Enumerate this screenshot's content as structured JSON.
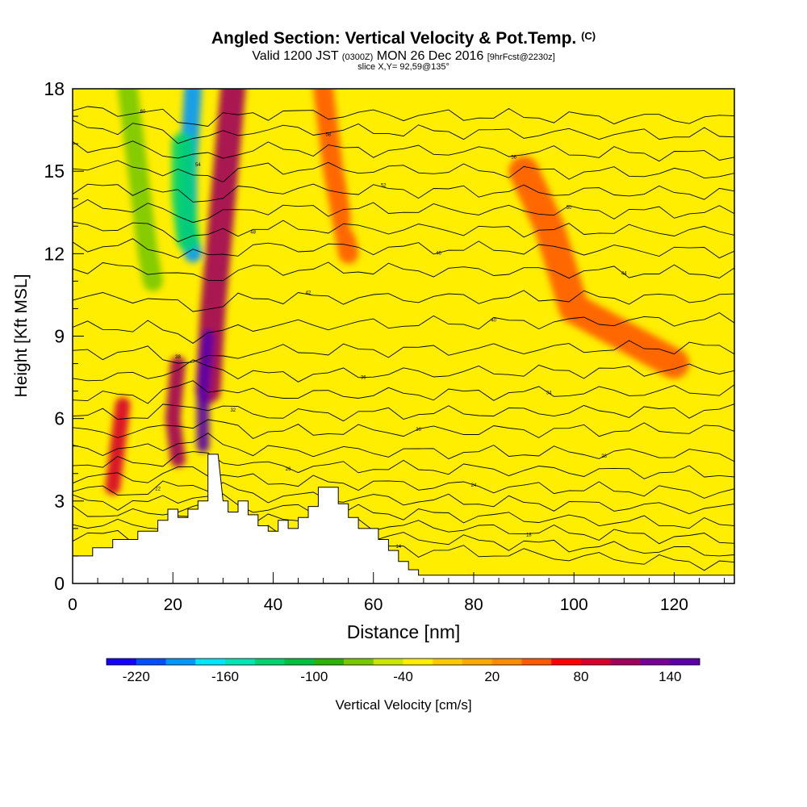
{
  "title": {
    "main": "Angled Section: Vertical Velocity & Pot.Temp.",
    "unit_tag": "(C)",
    "valid_prefix": "Valid 1200 JST",
    "utc_tag": "(0300Z)",
    "valid_date": "MON 26 Dec 2016",
    "forecast_tag": "[9hrFcst@2230z]",
    "slice": "slice X,Y= 92,59@135°"
  },
  "colors": {
    "background_field": "#ffee00",
    "terrain": "#ffffff",
    "contour": "#000000"
  },
  "chart_data": {
    "type": "contour",
    "xlabel": "Distance [nm]",
    "ylabel": "Height [Kft MSL]",
    "xlim": [
      0,
      132
    ],
    "ylim": [
      0,
      18
    ],
    "x_ticks": [
      0,
      20,
      40,
      60,
      80,
      100,
      120
    ],
    "y_ticks": [
      0,
      3,
      6,
      9,
      12,
      15,
      18
    ],
    "grid": false,
    "colorbar": {
      "label": "Vertical Velocity [cm/s]",
      "ticks": [
        "-220",
        "-160",
        "-100",
        "-40",
        "20",
        "80",
        "140"
      ],
      "colors": [
        "#1400ff",
        "#0050ff",
        "#0096ff",
        "#00e6ff",
        "#00e6b4",
        "#00d270",
        "#00c040",
        "#28b400",
        "#78c800",
        "#c8e600",
        "#ffee00",
        "#ffc800",
        "#ffa800",
        "#ff8c00",
        "#ff5a00",
        "#ff0000",
        "#d7002d",
        "#a0005a",
        "#780096",
        "#5a00aa"
      ],
      "min": -240,
      "max": 160,
      "step": 20
    },
    "terrain_profile": {
      "x": [
        0,
        0,
        4,
        4,
        8,
        8,
        13,
        13,
        17,
        17,
        19,
        19,
        21,
        21,
        23,
        23,
        25,
        25,
        27,
        27,
        29,
        30,
        31,
        31,
        33,
        33,
        35,
        35,
        37,
        37,
        39,
        39,
        41,
        41,
        43,
        43,
        45,
        45,
        47,
        47,
        49,
        49,
        50,
        52,
        53,
        53,
        55,
        55,
        57,
        57,
        61,
        61,
        63,
        63,
        65,
        65,
        67,
        67,
        69,
        69,
        71,
        71,
        132
      ],
      "y": [
        0.4,
        1.0,
        1.0,
        1.3,
        1.3,
        1.6,
        1.6,
        1.9,
        1.9,
        2.3,
        2.3,
        2.7,
        2.7,
        2.4,
        2.4,
        2.7,
        2.7,
        3.0,
        3.0,
        4.7,
        4.7,
        3.0,
        3.0,
        2.6,
        2.6,
        3.0,
        3.0,
        2.5,
        2.5,
        2.1,
        2.1,
        1.9,
        1.9,
        2.3,
        2.3,
        2.0,
        2.0,
        2.4,
        2.4,
        2.8,
        2.8,
        3.5,
        3.5,
        3.5,
        3.5,
        2.9,
        2.9,
        2.4,
        2.4,
        2.0,
        2.0,
        1.6,
        1.6,
        1.2,
        1.2,
        0.8,
        0.8,
        0.5,
        0.5,
        0.3,
        0.3,
        0.3,
        0.3
      ]
    },
    "velocity_features": [
      {
        "value": -80,
        "x": [
          11,
          13,
          15,
          16
        ],
        "y": [
          18,
          15,
          12,
          11
        ],
        "width": 4
      },
      {
        "value": -200,
        "x": [
          24,
          23,
          23,
          24
        ],
        "y": [
          18,
          15,
          13,
          12
        ],
        "width": 3.5
      },
      {
        "value": -140,
        "x": [
          22,
          22,
          23
        ],
        "y": [
          16,
          14,
          12.5
        ],
        "width": 4.5
      },
      {
        "value": 100,
        "x": [
          32,
          30,
          28,
          27
        ],
        "y": [
          18,
          14,
          10,
          7
        ],
        "width": 5
      },
      {
        "value": 140,
        "x": [
          27,
          26,
          26
        ],
        "y": [
          9,
          7,
          5
        ],
        "width": 2.5
      },
      {
        "value": 100,
        "x": [
          21,
          20,
          21
        ],
        "y": [
          8,
          6,
          4.5
        ],
        "width": 3
      },
      {
        "value": 90,
        "x": [
          10,
          9,
          8
        ],
        "y": [
          6.5,
          5,
          3.5
        ],
        "width": 3
      },
      {
        "value": 50,
        "x": [
          50,
          52,
          55
        ],
        "y": [
          18,
          15,
          12
        ],
        "width": 4
      },
      {
        "value": -40,
        "x": [
          60,
          58,
          57
        ],
        "y": [
          18,
          15,
          13
        ],
        "width": 3
      },
      {
        "value": 40,
        "x": [
          90,
          95,
          100,
          120
        ],
        "y": [
          15,
          13,
          10,
          8
        ],
        "width": 6
      }
    ],
    "pot_temp_contours": [
      {
        "label": "60",
        "y0": 17.2,
        "y1": 16.9
      },
      {
        "label": "58",
        "y0": 16.6,
        "y1": 16.3
      },
      {
        "label": "56",
        "y0": 15.9,
        "y1": 15.6
      },
      {
        "label": "54",
        "y0": 15.2,
        "y1": 14.9
      },
      {
        "label": "52",
        "y0": 14.4,
        "y1": 14.2
      },
      {
        "label": "50",
        "y0": 13.7,
        "y1": 13.5
      },
      {
        "label": "48",
        "y0": 13.0,
        "y1": 12.8
      },
      {
        "label": "46",
        "y0": 12.3,
        "y1": 12.1
      },
      {
        "label": "44",
        "y0": 11.5,
        "y1": 11.3
      },
      {
        "label": "42",
        "y0": 10.4,
        "y1": 10.4
      },
      {
        "label": "40",
        "y0": 9.3,
        "y1": 9.6
      },
      {
        "label": "38",
        "y0": 8.4,
        "y1": 8.6
      },
      {
        "label": "36",
        "y0": 7.5,
        "y1": 7.8
      },
      {
        "label": "34",
        "y0": 6.8,
        "y1": 7.0
      },
      {
        "label": "32",
        "y0": 6.1,
        "y1": 6.3
      },
      {
        "label": "30",
        "y0": 5.5,
        "y1": 5.6
      },
      {
        "label": "28",
        "y0": 4.9,
        "y1": 4.7
      },
      {
        "label": "26",
        "y0": 4.4,
        "y1": 4.0
      },
      {
        "label": "24",
        "y0": 3.9,
        "y1": 3.3
      },
      {
        "label": "22",
        "y0": 3.4,
        "y1": 2.7
      },
      {
        "label": "20",
        "y0": 3.0,
        "y1": 2.1
      },
      {
        "label": "18",
        "y0": 2.6,
        "y1": 1.6
      },
      {
        "label": "16",
        "y0": 2.2,
        "y1": 1.1
      },
      {
        "label": "14",
        "y0": 1.8,
        "y1": 0.7
      }
    ]
  }
}
